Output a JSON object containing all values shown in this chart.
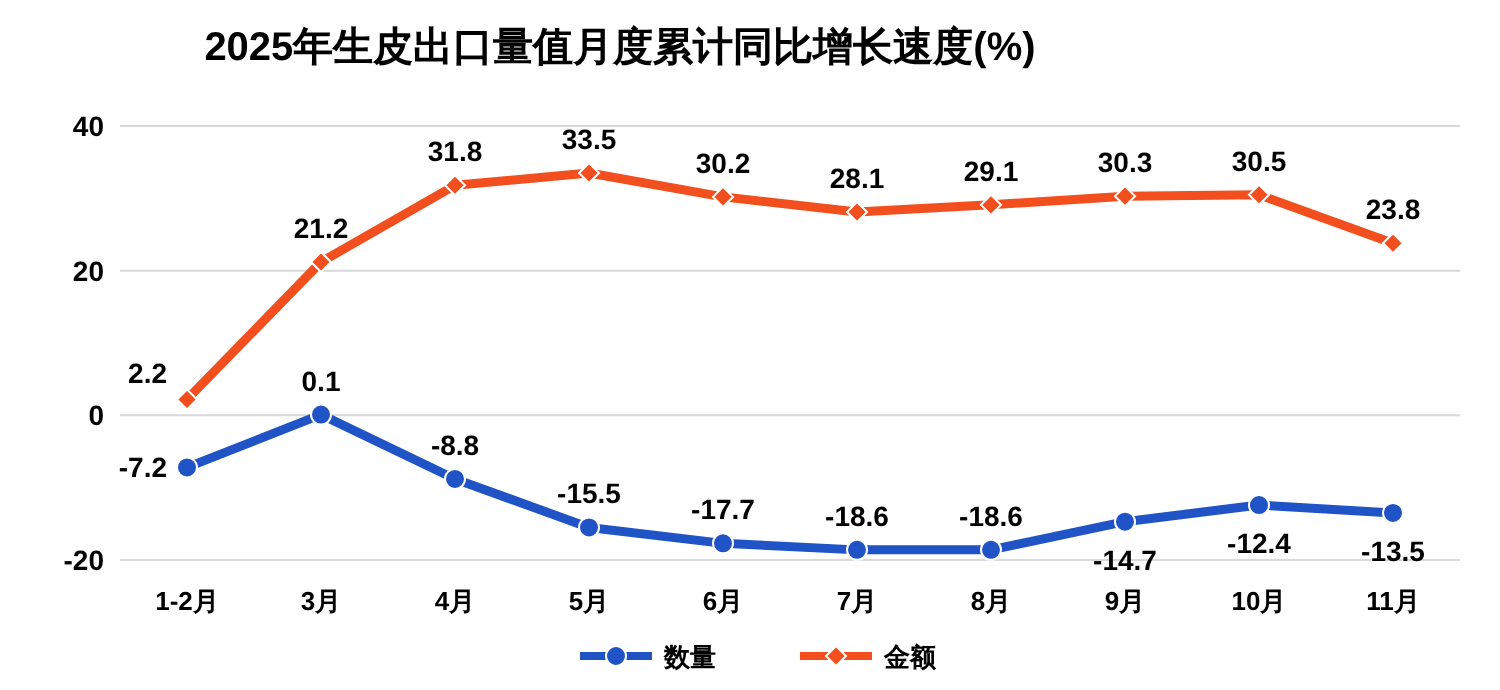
{
  "chart_data": {
    "type": "line",
    "title": "2025年生皮出口量值月度累计同比增长速度(%)",
    "categories": [
      "1-2月",
      "3月",
      "4月",
      "5月",
      "6月",
      "7月",
      "8月",
      "9月",
      "10月",
      "11月"
    ],
    "series": [
      {
        "name": "数量",
        "color": "#1f53c6",
        "marker": "circle",
        "values": [
          -7.2,
          0.1,
          -8.8,
          -15.5,
          -17.7,
          -18.6,
          -18.6,
          -14.7,
          -12.4,
          -13.5
        ]
      },
      {
        "name": "金额",
        "color": "#f24e1e",
        "marker": "diamond",
        "values": [
          2.2,
          21.2,
          31.8,
          33.5,
          30.2,
          28.1,
          29.1,
          30.3,
          30.5,
          23.8
        ]
      }
    ],
    "ylim": [
      -20,
      40
    ],
    "yticks": [
      -20,
      0,
      20,
      40
    ],
    "grid": "y",
    "legend": "bottom",
    "data_labels": true
  }
}
